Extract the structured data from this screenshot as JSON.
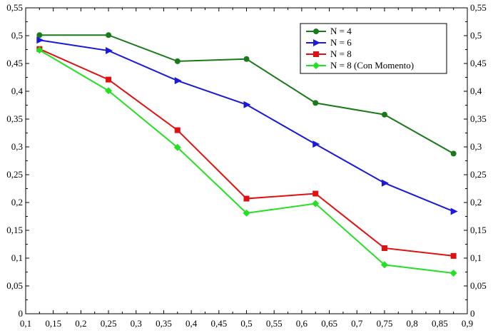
{
  "chart_data": {
    "type": "line",
    "title": "",
    "xlabel": "",
    "ylabel": "",
    "xlim": [
      0.1,
      0.9
    ],
    "ylim": [
      0,
      0.55
    ],
    "x_ticks": [
      "0,1",
      "0,15",
      "0,2",
      "0,25",
      "0,3",
      "0,35",
      "0,4",
      "0,45",
      "0,5",
      "0,55",
      "0,6",
      "0,65",
      "0,7",
      "0,75",
      "0,8",
      "0,85",
      "0,9"
    ],
    "y_ticks": [
      "0",
      "0,05",
      "0,1",
      "0,15",
      "0,2",
      "0,25",
      "0,3",
      "0,35",
      "0,4",
      "0,45",
      "0,5",
      "0,55"
    ],
    "right_axis_mirror": true,
    "grid": false,
    "legend_position": "top-right",
    "x": [
      0.125,
      0.25,
      0.375,
      0.5,
      0.625,
      0.75,
      0.875
    ],
    "series": [
      {
        "name": "N = 4",
        "color": "#1a7a1a",
        "marker": "circle",
        "values": [
          0.501,
          0.501,
          0.454,
          0.458,
          0.379,
          0.358,
          0.288
        ]
      },
      {
        "name": "N = 6",
        "color": "#1a1ad8",
        "marker": "triangle-right",
        "values": [
          0.492,
          0.473,
          0.419,
          0.376,
          0.305,
          0.235,
          0.184
        ]
      },
      {
        "name": "N = 8",
        "color": "#e01010",
        "marker": "square",
        "values": [
          0.476,
          0.421,
          0.33,
          0.207,
          0.216,
          0.118,
          0.104
        ]
      },
      {
        "name": "N = 8 (Con Momento)",
        "color": "#22e022",
        "marker": "diamond",
        "values": [
          0.474,
          0.401,
          0.299,
          0.181,
          0.198,
          0.088,
          0.073
        ]
      }
    ]
  }
}
